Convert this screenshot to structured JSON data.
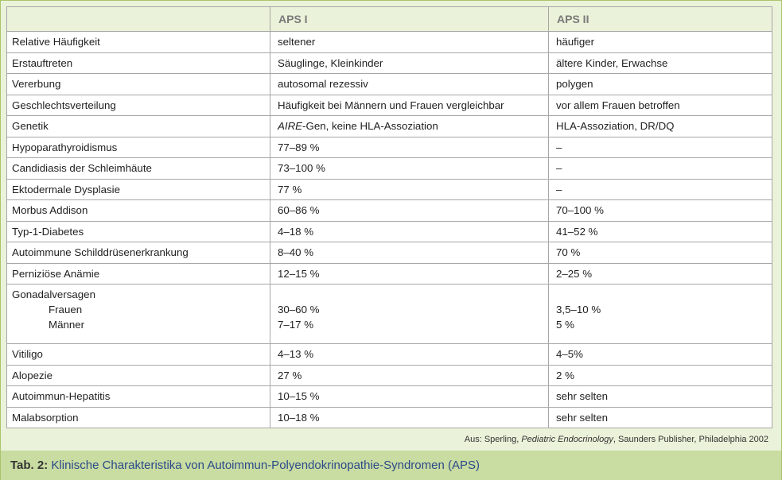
{
  "table": {
    "headers": [
      "",
      "APS I",
      "APS II"
    ],
    "rows": [
      {
        "label": "Relative Häufigkeit",
        "aps1": "seltener",
        "aps2": "häufiger"
      },
      {
        "label": "Erstauftreten",
        "aps1": "Säuglinge, Kleinkinder",
        "aps2": "ältere Kinder, Erwachse"
      },
      {
        "label": "Vererbung",
        "aps1": "autosomal rezessiv",
        "aps2": "polygen"
      },
      {
        "label": "Geschlechtsverteilung",
        "aps1": "Häufigkeit bei Männern und Frauen vergleichbar",
        "aps2": "vor allem Frauen betroffen"
      },
      {
        "label": "Genetik",
        "aps1_gene": "AIRE",
        "aps1_rest": "-Gen, keine HLA-Assoziation",
        "aps2": "HLA-Assoziation, DR/DQ"
      },
      {
        "label": "Hypoparathyroidismus",
        "aps1": "77–89 %",
        "aps2": "–"
      },
      {
        "label": "Candidiasis der Schleimhäute",
        "aps1": "73–100 %",
        "aps2": "–"
      },
      {
        "label": "Ektodermale Dysplasie",
        "aps1": "77 %",
        "aps2": "–"
      },
      {
        "label": "Morbus Addison",
        "aps1": "60–86 %",
        "aps2": "70–100 %"
      },
      {
        "label": "Typ-1-Diabetes",
        "aps1": "4–18 %",
        "aps2": "41–52 %"
      },
      {
        "label": "Autoimmune Schilddrüsenerkrankung",
        "aps1": "8–40 %",
        "aps2": "70 %"
      },
      {
        "label": "Perniziöse Anämie",
        "aps1": "12–15 %",
        "aps2": "2–25 %"
      }
    ],
    "gonadal": {
      "label": "Gonadalversagen",
      "sub1": {
        "label": "Frauen",
        "aps1": "30–60 %",
        "aps2": "3,5–10 %"
      },
      "sub2": {
        "label": "Männer",
        "aps1": "7–17 %",
        "aps2": "5 %"
      }
    },
    "rows2": [
      {
        "label": "Vitiligo",
        "aps1": "4–13 %",
        "aps2": "4–5%"
      },
      {
        "label": "Alopezie",
        "aps1": "27 %",
        "aps2": "2 %"
      },
      {
        "label": "Autoimmun-Hepatitis",
        "aps1": "10–15 %",
        "aps2": "sehr selten"
      },
      {
        "label": "Malabsorption",
        "aps1": "10–18 %",
        "aps2": "sehr selten"
      }
    ]
  },
  "source": {
    "prefix": "Aus: Sperling, ",
    "book": "Pediatric Endocrinology",
    "suffix": ", Saunders Publisher, Philadelphia 2002"
  },
  "caption": {
    "label": "Tab. 2:",
    "text": " Klinische Charakteristika von Autoimmun-Polyendokrinopathie-Syndromen (APS)"
  },
  "colors": {
    "panel_bg": "#eaf2d9",
    "caption_bg": "#c9dca1",
    "caption_text": "#2a4a8a",
    "header_text": "#7a7a7a",
    "border": "#a7a7a7"
  }
}
